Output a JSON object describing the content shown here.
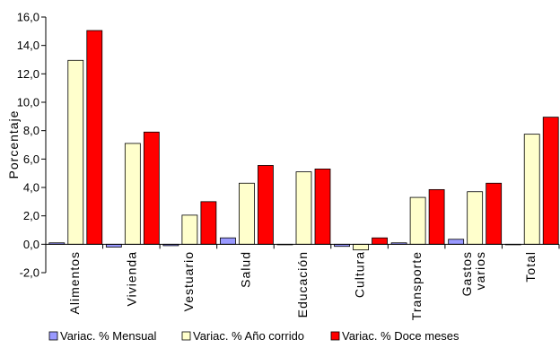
{
  "chart_data": {
    "type": "bar",
    "title": "",
    "xlabel": "",
    "ylabel": "Porcentaje",
    "ylim": [
      -2.0,
      16.0
    ],
    "ytick_step": 2.0,
    "ytick_labels": [
      "-2,0",
      "0,0",
      "2,0",
      "4,0",
      "6,0",
      "8,0",
      "10,0",
      "12,0",
      "14,0",
      "16,0"
    ],
    "grid": false,
    "legend_position": "bottom",
    "categories": [
      [
        "Alimentos"
      ],
      [
        "Vivienda"
      ],
      [
        "Vestuario"
      ],
      [
        "Salud"
      ],
      [
        "Educación"
      ],
      [
        "Cultura"
      ],
      [
        "Transporte"
      ],
      [
        "Gastos",
        "varios"
      ],
      [
        "Total"
      ]
    ],
    "series": [
      {
        "name": "Variac. % Mensual",
        "color": "#9999FF",
        "values": [
          0.1,
          -0.2,
          -0.1,
          0.45,
          0.0,
          -0.15,
          0.1,
          0.35,
          0.0
        ]
      },
      {
        "name": "Variac. % Año corrido",
        "color": "#FFFFCC",
        "values": [
          12.95,
          7.1,
          2.05,
          4.3,
          5.1,
          -0.4,
          3.3,
          3.7,
          7.75
        ]
      },
      {
        "name": "Variac. % Doce meses",
        "color": "#FF0000",
        "values": [
          15.05,
          7.9,
          3.0,
          5.55,
          5.3,
          0.45,
          3.85,
          4.3,
          8.95
        ]
      }
    ]
  }
}
